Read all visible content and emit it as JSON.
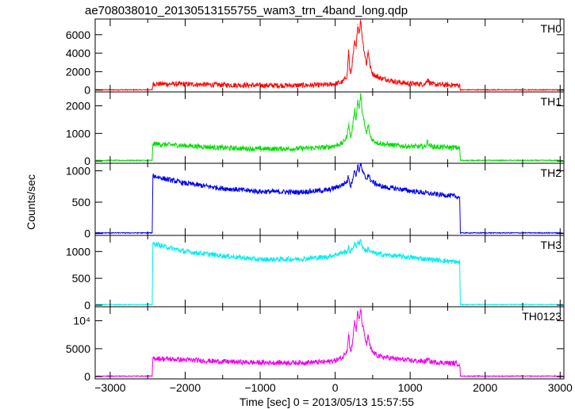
{
  "chart_data": {
    "type": "line",
    "title": "ae708038010_20130513155755_wam3_trn_4band_long.qdp",
    "xlabel": "Time [sec] 0 = 2013/05/13 15:57:55",
    "ylabel": "Counts/sec",
    "xlim": [
      -3200,
      3050
    ],
    "x_ticks": [
      -3000,
      -2000,
      -1000,
      0,
      1000,
      2000,
      3000
    ],
    "x_tick_labels": [
      "−3000",
      "−2000",
      "−1000",
      "0",
      "1000",
      "2000",
      "3000"
    ],
    "grid": false,
    "panels": [
      {
        "name": "TH0",
        "color": "#ff0000",
        "ylim": [
          -200,
          7700
        ],
        "y_ticks": [
          0,
          2000,
          4000,
          6000
        ],
        "y_tick_labels": [
          "0",
          "2000",
          "4000",
          "6000"
        ],
        "x": [
          -3000,
          -2440,
          -2430,
          -2000,
          -1500,
          -1000,
          -500,
          -100,
          0,
          100,
          160,
          180,
          195,
          210,
          230,
          260,
          280,
          300,
          320,
          340,
          360,
          380,
          400,
          420,
          440,
          470,
          500,
          550,
          600,
          700,
          800,
          1000,
          1200,
          1230,
          1260,
          1300,
          1500,
          1660,
          1670,
          2000,
          3000
        ],
        "y": [
          30,
          30,
          680,
          640,
          560,
          510,
          510,
          560,
          690,
          880,
          1600,
          4300,
          2200,
          1800,
          3100,
          5200,
          4500,
          7100,
          6200,
          7600,
          5800,
          4600,
          3600,
          2800,
          4300,
          2400,
          1800,
          1500,
          1300,
          1150,
          900,
          700,
          650,
          1200,
          800,
          620,
          560,
          520,
          30,
          30,
          30
        ]
      },
      {
        "name": "TH1",
        "color": "#00dd00",
        "ylim": [
          -80,
          2500
        ],
        "y_ticks": [
          0,
          1000,
          2000
        ],
        "y_tick_labels": [
          "0",
          "1000",
          "2000"
        ],
        "x": [
          -3000,
          -2440,
          -2430,
          -2000,
          -1500,
          -1000,
          -500,
          -100,
          0,
          100,
          160,
          180,
          195,
          210,
          230,
          260,
          280,
          300,
          320,
          340,
          360,
          380,
          400,
          420,
          440,
          470,
          500,
          550,
          600,
          700,
          800,
          1000,
          1200,
          1230,
          1260,
          1300,
          1500,
          1660,
          1670,
          2000,
          3000
        ],
        "y": [
          25,
          25,
          620,
          560,
          480,
          440,
          450,
          500,
          560,
          650,
          900,
          1400,
          1000,
          850,
          1200,
          1850,
          1500,
          2200,
          1900,
          2400,
          1800,
          1500,
          1200,
          1000,
          1300,
          900,
          750,
          680,
          640,
          600,
          570,
          530,
          520,
          700,
          560,
          520,
          500,
          480,
          25,
          25,
          25
        ]
      },
      {
        "name": "TH2",
        "color": "#0000ee",
        "ylim": [
          -30,
          1120
        ],
        "y_ticks": [
          0,
          500,
          1000
        ],
        "y_tick_labels": [
          "0",
          "500",
          "1000"
        ],
        "x": [
          -3000,
          -2440,
          -2430,
          -2300,
          -2000,
          -1500,
          -1000,
          -500,
          -100,
          0,
          100,
          160,
          180,
          195,
          210,
          230,
          260,
          280,
          300,
          320,
          340,
          360,
          380,
          400,
          420,
          440,
          470,
          500,
          550,
          600,
          700,
          800,
          1000,
          1200,
          1300,
          1500,
          1660,
          1670,
          2000,
          3000
        ],
        "y": [
          10,
          10,
          920,
          880,
          800,
          720,
          670,
          660,
          690,
          730,
          780,
          830,
          920,
          800,
          760,
          860,
          1000,
          930,
          1080,
          1000,
          1120,
          1000,
          950,
          900,
          870,
          940,
          860,
          820,
          790,
          760,
          730,
          720,
          680,
          650,
          630,
          610,
          580,
          10,
          10,
          10
        ]
      },
      {
        "name": "TH3",
        "color": "#00eeee",
        "ylim": [
          -30,
          1300
        ],
        "y_ticks": [
          0,
          500,
          1000
        ],
        "y_tick_labels": [
          "0",
          "500",
          "1000"
        ],
        "x": [
          -3000,
          -2440,
          -2430,
          -2300,
          -2000,
          -1500,
          -1000,
          -500,
          -100,
          0,
          100,
          160,
          180,
          195,
          210,
          230,
          260,
          280,
          300,
          320,
          340,
          360,
          380,
          400,
          420,
          440,
          470,
          500,
          550,
          600,
          700,
          800,
          1000,
          1200,
          1300,
          1500,
          1660,
          1670,
          2000,
          3000
        ],
        "y": [
          10,
          10,
          1150,
          1100,
          1000,
          920,
          850,
          860,
          900,
          940,
          980,
          1000,
          1080,
          1000,
          990,
          1050,
          1150,
          1080,
          1200,
          1120,
          1220,
          1100,
          1060,
          1030,
          1000,
          1060,
          1000,
          980,
          960,
          950,
          930,
          920,
          890,
          860,
          850,
          820,
          800,
          10,
          10,
          10
        ]
      },
      {
        "name": "TH0123",
        "color": "#ee00ee",
        "ylim": [
          -400,
          12500
        ],
        "y_ticks": [
          0,
          5000,
          10000
        ],
        "y_tick_labels": [
          "0",
          "5000",
          "10⁴"
        ],
        "x": [
          -3000,
          -2440,
          -2430,
          -2000,
          -1500,
          -1000,
          -500,
          -100,
          0,
          100,
          160,
          180,
          195,
          210,
          230,
          260,
          280,
          300,
          320,
          340,
          360,
          380,
          400,
          420,
          440,
          470,
          500,
          550,
          600,
          700,
          800,
          1000,
          1200,
          1230,
          1260,
          1300,
          1500,
          1660,
          1670,
          2000,
          3000
        ],
        "y": [
          90,
          90,
          3300,
          3000,
          2700,
          2500,
          2500,
          2650,
          2900,
          3400,
          4800,
          7900,
          5200,
          4600,
          6100,
          9800,
          8200,
          11500,
          10000,
          12200,
          9500,
          8200,
          6800,
          5800,
          7200,
          5100,
          4400,
          3900,
          3600,
          3400,
          3200,
          2900,
          2700,
          3100,
          2750,
          2600,
          2450,
          2300,
          90,
          90,
          90
        ]
      }
    ]
  }
}
